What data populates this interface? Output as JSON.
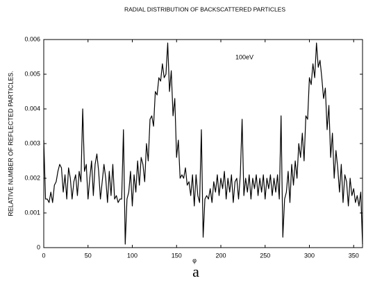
{
  "chart_data": {
    "type": "line",
    "title": "RADIAL  DISTRIBUTION OF BACKSCATTERED PARTICLES",
    "x_label": "φ",
    "y_label": "RELATIVE NUMBER OF REFLECTED PARTICLES.",
    "caption": "a",
    "annotation": "100eV",
    "xlim": [
      0,
      360
    ],
    "ylim": [
      0,
      0.006
    ],
    "xticks": [
      0,
      50,
      100,
      150,
      200,
      250,
      300,
      350
    ],
    "yticks": [
      0,
      0.001,
      0.002,
      0.003,
      0.004,
      0.005,
      0.006
    ],
    "x": [
      0,
      2,
      4,
      6,
      8,
      10,
      12,
      14,
      16,
      18,
      20,
      22,
      24,
      26,
      28,
      30,
      32,
      34,
      36,
      38,
      40,
      42,
      44,
      46,
      48,
      50,
      52,
      54,
      56,
      58,
      60,
      62,
      64,
      66,
      68,
      70,
      72,
      74,
      76,
      78,
      80,
      82,
      84,
      86,
      88,
      90,
      92,
      94,
      96,
      98,
      100,
      102,
      104,
      106,
      108,
      110,
      112,
      114,
      116,
      118,
      120,
      122,
      124,
      126,
      128,
      130,
      132,
      134,
      136,
      138,
      140,
      142,
      144,
      146,
      148,
      150,
      152,
      154,
      156,
      158,
      160,
      162,
      164,
      166,
      168,
      170,
      172,
      174,
      176,
      178,
      180,
      182,
      184,
      186,
      188,
      190,
      192,
      194,
      196,
      198,
      200,
      202,
      204,
      206,
      208,
      210,
      212,
      214,
      216,
      218,
      220,
      222,
      224,
      226,
      228,
      230,
      232,
      234,
      236,
      238,
      240,
      242,
      244,
      246,
      248,
      250,
      252,
      254,
      256,
      258,
      260,
      262,
      264,
      266,
      268,
      270,
      272,
      274,
      276,
      278,
      280,
      282,
      284,
      286,
      288,
      290,
      292,
      294,
      296,
      298,
      300,
      302,
      304,
      306,
      308,
      310,
      312,
      314,
      316,
      318,
      320,
      322,
      324,
      326,
      328,
      330,
      332,
      334,
      336,
      338,
      340,
      342,
      344,
      346,
      348,
      350,
      352,
      354,
      356,
      358,
      360
    ],
    "series": [
      {
        "color": "#000000",
        "values": [
          0.0031,
          0.0014,
          0.0014,
          0.0013,
          0.0016,
          0.0013,
          0.0018,
          0.0019,
          0.0022,
          0.0024,
          0.0023,
          0.0016,
          0.0021,
          0.0014,
          0.0023,
          0.002,
          0.0014,
          0.0019,
          0.0021,
          0.0015,
          0.0022,
          0.0019,
          0.004,
          0.0022,
          0.0024,
          0.0014,
          0.002,
          0.0025,
          0.0015,
          0.0024,
          0.0027,
          0.0022,
          0.0014,
          0.0019,
          0.0024,
          0.002,
          0.0013,
          0.0022,
          0.0015,
          0.0024,
          0.0014,
          0.0015,
          0.0013,
          0.0014,
          0.0014,
          0.0034,
          0.0001,
          0.0014,
          0.0016,
          0.0022,
          0.0012,
          0.0021,
          0.0016,
          0.0025,
          0.0018,
          0.0026,
          0.0024,
          0.0019,
          0.003,
          0.0025,
          0.0037,
          0.0038,
          0.0035,
          0.0045,
          0.0044,
          0.0049,
          0.0048,
          0.0053,
          0.0049,
          0.005,
          0.0059,
          0.0045,
          0.0051,
          0.0038,
          0.0043,
          0.0026,
          0.0031,
          0.002,
          0.0021,
          0.002,
          0.0023,
          0.0018,
          0.0019,
          0.0015,
          0.0021,
          0.0012,
          0.0021,
          0.0015,
          0.0013,
          0.0034,
          0.0003,
          0.0014,
          0.0015,
          0.0014,
          0.0017,
          0.0013,
          0.0019,
          0.0016,
          0.0021,
          0.0015,
          0.002,
          0.0017,
          0.0022,
          0.0014,
          0.002,
          0.0016,
          0.0021,
          0.0013,
          0.0019,
          0.002,
          0.0014,
          0.0021,
          0.0037,
          0.0015,
          0.002,
          0.0016,
          0.0021,
          0.0014,
          0.002,
          0.0017,
          0.0021,
          0.0015,
          0.002,
          0.0016,
          0.0021,
          0.0014,
          0.002,
          0.0017,
          0.0021,
          0.0015,
          0.002,
          0.0016,
          0.0021,
          0.0014,
          0.0038,
          0.0003,
          0.0014,
          0.0016,
          0.0022,
          0.0013,
          0.0024,
          0.0018,
          0.0025,
          0.002,
          0.003,
          0.0026,
          0.0033,
          0.0025,
          0.0038,
          0.0037,
          0.0049,
          0.0047,
          0.0053,
          0.0049,
          0.0059,
          0.0052,
          0.0054,
          0.0049,
          0.0043,
          0.0046,
          0.0034,
          0.0041,
          0.0026,
          0.0033,
          0.002,
          0.0028,
          0.0023,
          0.0016,
          0.0024,
          0.0013,
          0.0021,
          0.0019,
          0.0012,
          0.002,
          0.0015,
          0.0017,
          0.0013,
          0.0015,
          0.0012,
          0.0016,
          0.0001
        ]
      }
    ]
  }
}
